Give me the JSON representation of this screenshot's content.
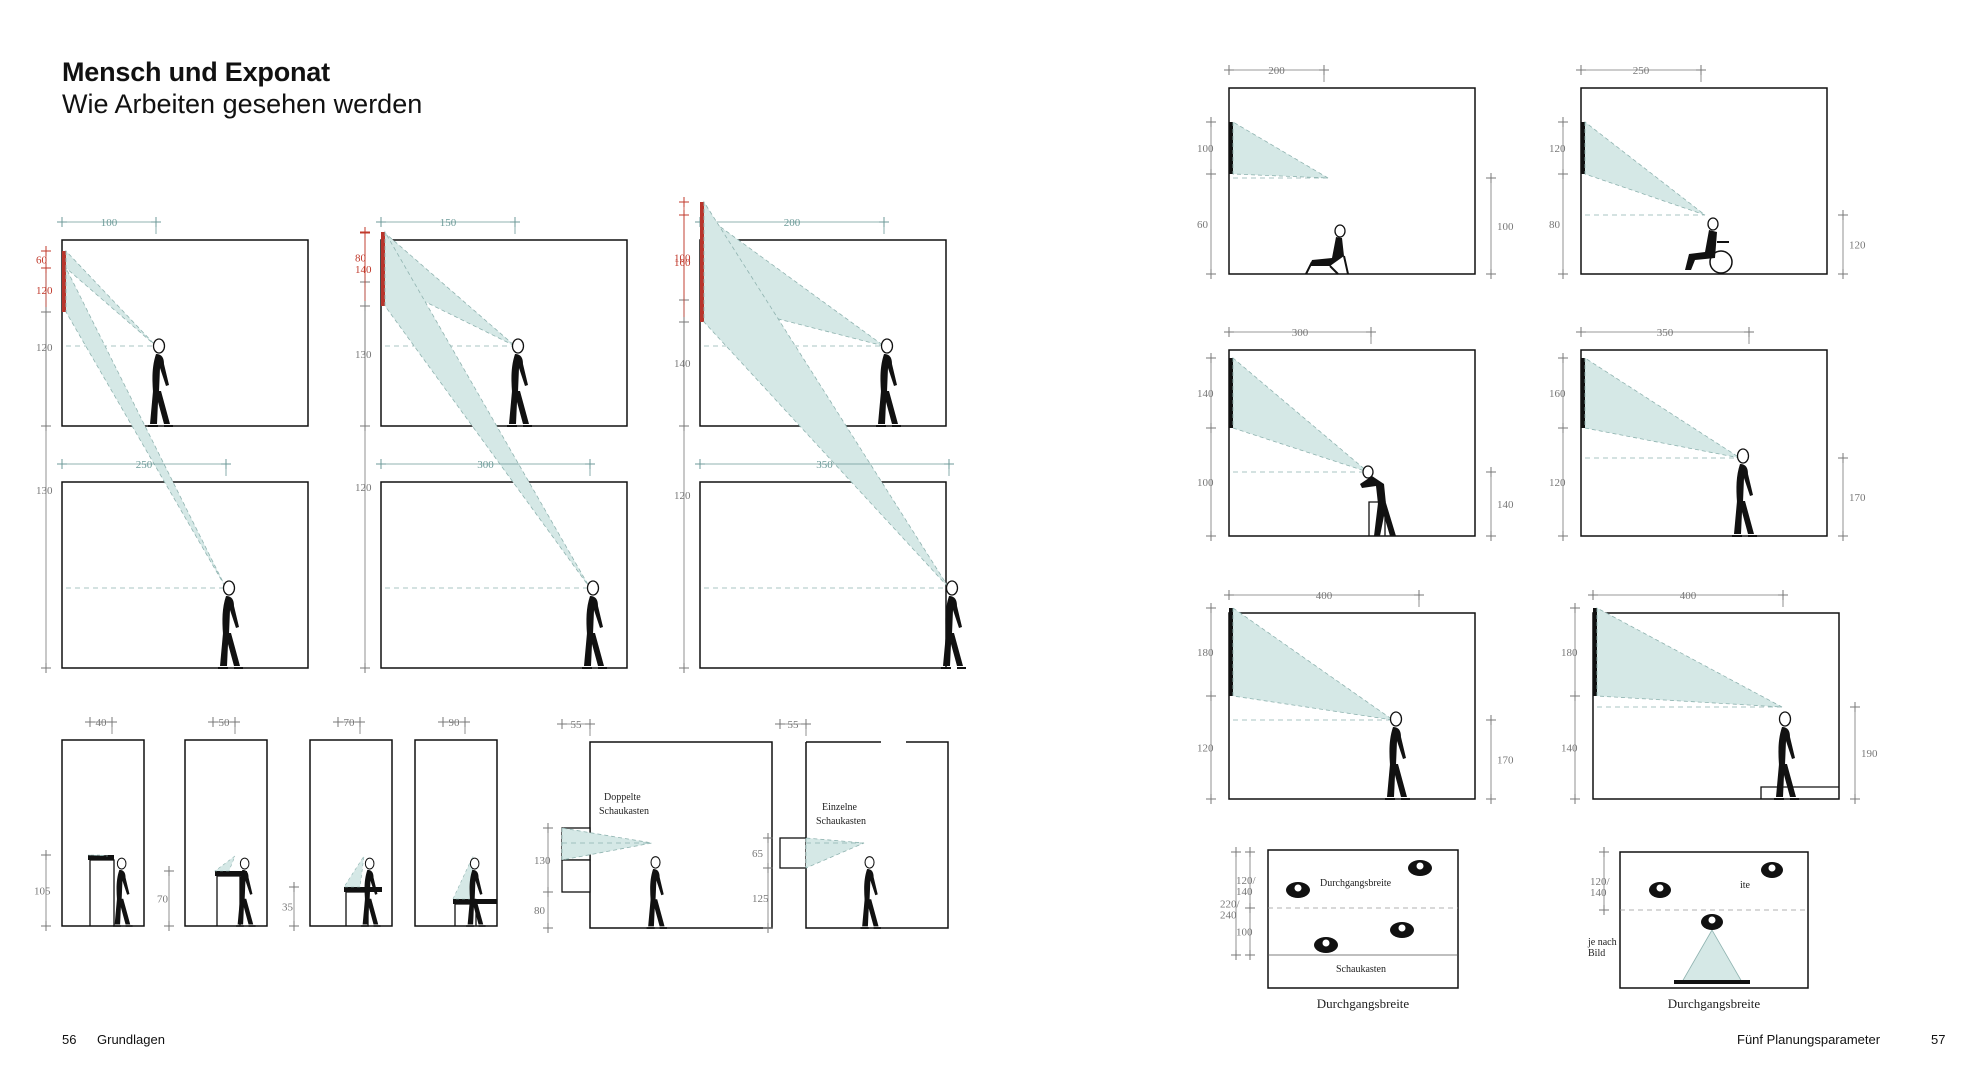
{
  "header": {
    "title": "Mensch und Exponat",
    "subtitle": "Wie Arbeiten gesehen werden"
  },
  "footer": {
    "left_page": "56",
    "left_section": "Grundlagen",
    "right_section": "Fünf Planungsparameter",
    "right_page": "57"
  },
  "colors": {
    "cone": "#d5e8e6",
    "cone_stroke": "#8fb3b0",
    "exhibit_red": "#b8352c",
    "dim_teal": "#6c9a98",
    "dim_red": "#c0392b",
    "dim_gray": "#777777",
    "ink": "#111111"
  },
  "panels": [
    {
      "distance": "100",
      "image_height": "60",
      "eye_height": "120",
      "figure": "standing"
    },
    {
      "distance": "150",
      "image_height": "80",
      "eye_height": "130",
      "figure": "standing"
    },
    {
      "distance": "200",
      "image_height": "100",
      "eye_height": "140",
      "figure": "standing"
    },
    {
      "distance": "250",
      "image_height": "120",
      "eye_height": "130",
      "figure": "standing"
    },
    {
      "distance": "300",
      "image_height": "140",
      "eye_height": "120",
      "figure": "standing"
    },
    {
      "distance": "350",
      "image_height": "160",
      "eye_height": "120",
      "figure": "standing"
    }
  ],
  "vitrines": [
    {
      "width": "40",
      "height": "105"
    },
    {
      "width": "50",
      "height": "70"
    },
    {
      "width": "70",
      "height": "35"
    },
    {
      "width": "90",
      "height": ""
    }
  ],
  "showcases": [
    {
      "depth": "55",
      "label_line1": "Doppelte",
      "label_line2": "Schaukasten",
      "dim_upper": "130",
      "dim_lower": "80"
    },
    {
      "depth": "55",
      "label_line1": "Einzelne",
      "label_line2": "Schaukasten",
      "dim_upper": "65",
      "dim_lower": "125"
    }
  ],
  "right_panels": [
    {
      "distance": "200",
      "image_height": "100",
      "floor_height": "60",
      "eye_height": "100",
      "figure": "seated"
    },
    {
      "distance": "250",
      "image_height": "120",
      "floor_height": "80",
      "eye_height": "120",
      "figure": "wheelchair"
    },
    {
      "distance": "300",
      "image_height": "140",
      "floor_height": "100",
      "eye_height": "140",
      "figure": "bent"
    },
    {
      "distance": "350",
      "image_height": "160",
      "floor_height": "120",
      "eye_height": "170",
      "figure": "standing"
    },
    {
      "distance": "400",
      "image_height": "180",
      "floor_height": "120",
      "eye_height": "170",
      "figure": "standing"
    },
    {
      "distance": "400",
      "image_height": "180",
      "floor_height": "140",
      "eye_height": "190",
      "figure": "standing"
    }
  ],
  "plans": [
    {
      "caption": "Durchgangsbreite",
      "dim_top": "120/\n140",
      "dim_mid": "220/\n240",
      "dim_bottom": "100",
      "label_passage": "Durchgangsbreite",
      "label_case": "Schaukasten"
    },
    {
      "caption": "Durchgangsbreite",
      "dim_top": "120/\n140",
      "dim_note": "je nach\nBild",
      "label_passage": "ite"
    }
  ]
}
